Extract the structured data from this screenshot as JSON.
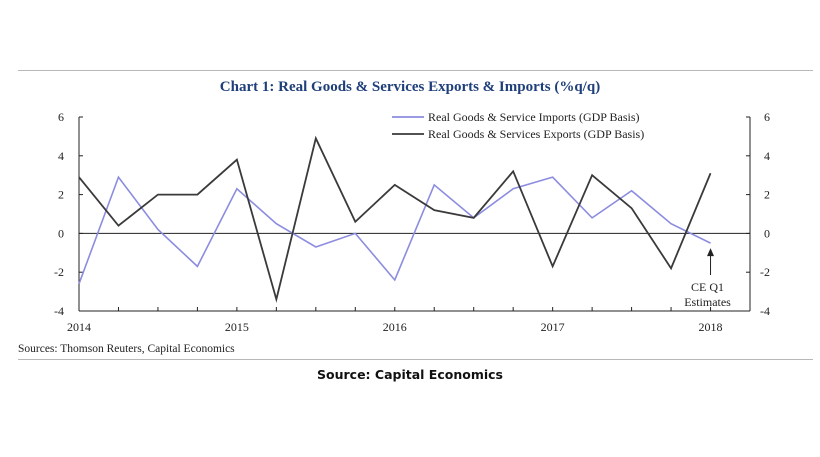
{
  "caption": "Source: Capital Economics",
  "chart_data": {
    "type": "line",
    "title": "Chart 1: Real Goods & Services Exports & Imports (%q/q)",
    "sources": "Sources: Thomson Reuters, Capital Economics",
    "x_ticks": [
      "2014",
      "2015",
      "2016",
      "2017",
      "2018"
    ],
    "x_tick_positions": [
      0,
      4,
      8,
      12,
      16
    ],
    "x_range": [
      0,
      17
    ],
    "ylim": [
      -4,
      6
    ],
    "y_ticks": [
      -4,
      -2,
      0,
      2,
      4,
      6
    ],
    "y_tick_labels": [
      "-4",
      "-2",
      "0",
      "2",
      "4",
      "6"
    ],
    "secondary_ylim": [
      -4,
      6
    ],
    "legend_position": "top-right",
    "annotation": {
      "lines": [
        "CE Q1",
        "Estimates"
      ],
      "x": 16,
      "y": -0.5
    },
    "series": [
      {
        "name": "Real Goods & Service Imports (GDP Basis)",
        "color": "#8c8ce0",
        "x": [
          0,
          1,
          2,
          3,
          4,
          5,
          6,
          7,
          8,
          9,
          10,
          11,
          12,
          13,
          14,
          15,
          16
        ],
        "values": [
          -2.6,
          2.9,
          0.2,
          -1.7,
          2.3,
          0.5,
          -0.7,
          0.0,
          -2.4,
          2.5,
          0.8,
          2.3,
          2.9,
          0.8,
          2.2,
          0.5,
          -0.5
        ]
      },
      {
        "name": "Real Goods & Services Exports (GDP Basis)",
        "color": "#3a3a3a",
        "x": [
          0,
          1,
          2,
          3,
          4,
          5,
          6,
          7,
          8,
          9,
          10,
          11,
          12,
          13,
          14,
          15,
          16
        ],
        "values": [
          2.9,
          0.4,
          2.0,
          2.0,
          3.8,
          -3.4,
          4.9,
          0.6,
          2.5,
          1.2,
          0.8,
          3.2,
          -1.7,
          3.0,
          1.3,
          -1.8,
          3.1
        ]
      }
    ]
  }
}
